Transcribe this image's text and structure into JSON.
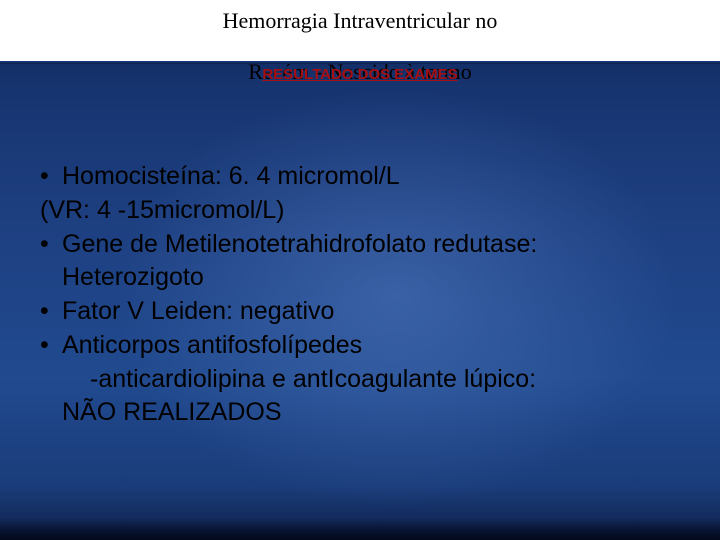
{
  "colors": {
    "subheader_text": "#a60f12",
    "body_text": "#000000",
    "header_bg": "#ffffff",
    "header_border": "#123068"
  },
  "typography": {
    "title_font": "Times New Roman",
    "title_size_pt": 17,
    "body_font": "Arial",
    "body_size_pt": 19,
    "subheader_size_pt": 11,
    "subheader_weight": "bold",
    "subheader_underline": true
  },
  "header": {
    "title_line1": "Hemorragia Intraventricular no",
    "title_line2": "Recém - Nascido à termo"
  },
  "subheader": {
    "text": "RESULTADO DOS EXAMES"
  },
  "content": {
    "items": [
      {
        "type": "bullet",
        "text": "Homocisteína: 6. 4 micromol/L"
      },
      {
        "type": "plain",
        "text": "(VR: 4 -15micromol/L)"
      },
      {
        "type": "bullet",
        "text": "Gene de Metilenotetrahidrofolato redutase:"
      },
      {
        "type": "indent1",
        "text": "Heterozigoto"
      },
      {
        "type": "bullet",
        "text": "Fator V Leiden: negativo"
      },
      {
        "type": "bullet",
        "text": "Anticorpos antifosfolípedes"
      },
      {
        "type": "indent2",
        "text": "-anticardiolipina e antIcoagulante lúpico:"
      },
      {
        "type": "indent1",
        "text": "NÃO REALIZADOS"
      }
    ]
  }
}
